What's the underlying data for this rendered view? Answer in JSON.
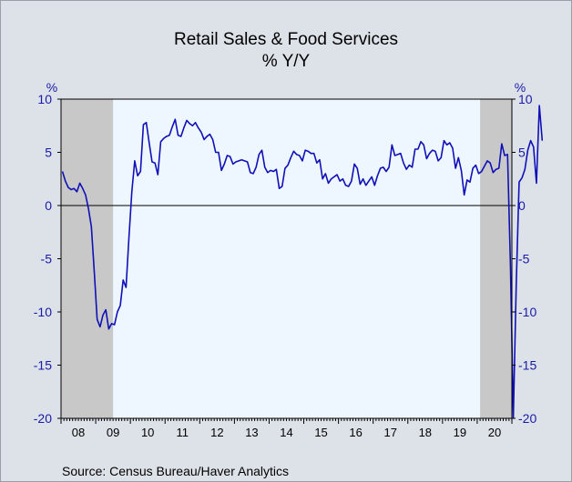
{
  "chart_data": {
    "type": "line",
    "title": "Retail Sales & Food Services",
    "subtitle": "% Y/Y",
    "ylabel_left": "%",
    "ylabel_right": "%",
    "source": "Source:  Census Bureau/Haver Analytics",
    "ylim": [
      -20,
      10
    ],
    "yticks": [
      10,
      5,
      0,
      -5,
      -10,
      -15,
      -20
    ],
    "x_start": "2008-01",
    "x_end": "2020-12",
    "year_labels": [
      "08",
      "09",
      "10",
      "11",
      "12",
      "13",
      "14",
      "15",
      "16",
      "17",
      "18",
      "19",
      "20"
    ],
    "recessions": [
      {
        "start": "2008-01",
        "end": "2009-06"
      },
      {
        "start": "2020-02",
        "end": "2020-12"
      }
    ],
    "colors": {
      "line": "#1010b8",
      "plot_bg": "#eef6ff",
      "recession": "#c8c8c8",
      "tick_text": "#1a1aa8",
      "zero_line": "#000000"
    },
    "series": [
      {
        "values": [
          3.2,
          2.3,
          1.7,
          1.5,
          1.6,
          1.3,
          2.1,
          1.6,
          1.0,
          -0.3,
          -2.0,
          -6.2,
          -10.7,
          -11.4,
          -10.3,
          -9.8,
          -11.6,
          -11.1,
          -11.2,
          -10.0,
          -9.4,
          -7.0,
          -7.7,
          -3.0,
          1.3,
          4.2,
          2.8,
          3.2,
          7.6,
          7.8,
          5.9,
          4.1,
          4.0,
          2.9,
          6.0,
          6.3,
          6.5,
          6.6,
          7.4,
          8.1,
          6.6,
          6.5,
          7.3,
          8.0,
          7.7,
          7.5,
          7.8,
          7.3,
          6.9,
          6.2,
          6.5,
          6.7,
          6.2,
          5.0,
          5.0,
          3.3,
          3.9,
          4.7,
          4.6,
          3.9,
          4.1,
          4.2,
          4.3,
          4.2,
          4.1,
          3.1,
          3.0,
          3.6,
          4.8,
          5.2,
          3.6,
          3.1,
          3.3,
          3.2,
          3.4,
          1.6,
          1.8,
          3.5,
          3.8,
          4.5,
          5.1,
          4.8,
          4.7,
          4.2,
          5.2,
          5.1,
          4.9,
          4.9,
          4.0,
          4.3,
          2.5,
          3.0,
          2.1,
          2.5,
          2.7,
          2.9,
          2.3,
          2.5,
          1.9,
          1.8,
          2.3,
          3.9,
          3.5,
          2.0,
          2.5,
          1.9,
          2.3,
          2.7,
          1.9,
          2.8,
          3.5,
          3.6,
          3.2,
          3.6,
          5.7,
          4.7,
          4.8,
          4.9,
          4.0,
          3.4,
          3.8,
          3.6,
          5.3,
          5.3,
          6.0,
          5.7,
          4.4,
          4.9,
          5.2,
          5.1,
          4.2,
          4.5,
          6.1,
          5.7,
          5.9,
          5.4,
          3.5,
          4.5,
          3.3,
          1.0,
          2.4,
          2.2,
          3.5,
          3.8,
          3.0,
          3.2,
          3.7,
          4.2,
          4.0,
          3.1,
          3.4,
          3.5,
          5.8,
          4.7,
          4.8,
          -5.6,
          -19.9,
          -7.5,
          2.2,
          2.6,
          3.4,
          5.2,
          6.1,
          5.5,
          2.1,
          9.4,
          6.1
        ]
      }
    ]
  }
}
